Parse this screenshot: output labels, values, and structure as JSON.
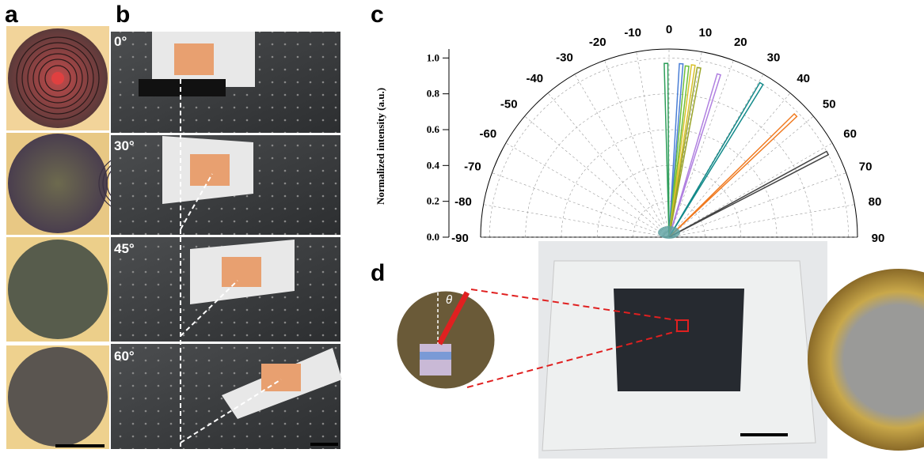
{
  "panels": {
    "a": "a",
    "b": "b",
    "c": "c",
    "d": "d"
  },
  "panel_b_angles": [
    "0°",
    "30°",
    "45°",
    "60°"
  ],
  "inset_symbol": "θ",
  "chart_data": {
    "type": "polar",
    "ylabel": "Normalized intensity (a.u.)",
    "rlim": [
      0,
      1.05
    ],
    "rticks": [
      {
        "value": 0,
        "label": "0.0"
      },
      {
        "value": 0.2,
        "label": "0.2"
      },
      {
        "value": 0.4,
        "label": "0.4"
      },
      {
        "value": 0.6,
        "label": "0.6"
      },
      {
        "value": 0.8,
        "label": "0.8"
      },
      {
        "value": 1,
        "label": "1.0"
      }
    ],
    "thetalim": [
      -90,
      90
    ],
    "thetaticks": [
      -90,
      -80,
      -70,
      -60,
      -50,
      -40,
      -30,
      -20,
      -10,
      0,
      10,
      20,
      30,
      40,
      50,
      60,
      70,
      80,
      90
    ],
    "grid": true,
    "series": [
      {
        "color": "#2e9e5a",
        "angle": -1,
        "value": 0.97
      },
      {
        "color": "#4a7fd6",
        "angle": 4,
        "value": 0.97
      },
      {
        "color": "#6fbf3a",
        "angle": 6,
        "value": 0.96
      },
      {
        "color": "#d8c02a",
        "angle": 8,
        "value": 0.97
      },
      {
        "color": "#9aa52a",
        "angle": 10,
        "value": 0.96
      },
      {
        "color": "#b080e0",
        "angle": 17,
        "value": 0.95
      },
      {
        "color": "#138a8a",
        "angle": 31,
        "value": 1
      },
      {
        "color": "#f07a20",
        "angle": 46,
        "value": 0.98
      },
      {
        "color": "#444444",
        "angle": 62,
        "value": 1
      }
    ]
  }
}
